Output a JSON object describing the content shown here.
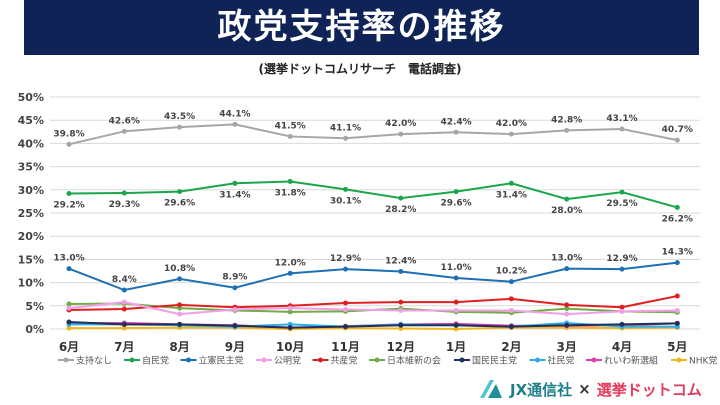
{
  "header": {
    "title": "政党支持率の推移",
    "subtitle": "(選挙ドットコムリサーチ　電話調査)"
  },
  "footer": {
    "brand1": "JX通信社",
    "times": "×",
    "brand2": "選挙ドットコム"
  },
  "chart_data": {
    "type": "line",
    "title": "政党支持率の推移",
    "subtitle": "(選挙ドットコムリサーチ　電話調査)",
    "categories": [
      "6月",
      "7月",
      "8月",
      "9月",
      "10月",
      "11月",
      "12月",
      "1月",
      "2月",
      "3月",
      "4月",
      "5月"
    ],
    "ylim": [
      0,
      50
    ],
    "yticks": [
      "0%",
      "5%",
      "10%",
      "15%",
      "20%",
      "25%",
      "30%",
      "35%",
      "40%",
      "45%",
      "50%"
    ],
    "grid": true,
    "legend": "bottom",
    "series": [
      {
        "name": "支持なし",
        "color": "#a6a6a6",
        "values": [
          39.8,
          42.6,
          43.5,
          44.1,
          41.5,
          41.1,
          42.0,
          42.4,
          42.0,
          42.8,
          43.1,
          40.7
        ],
        "labels": [
          "39.8%",
          "42.6%",
          "43.5%",
          "44.1%",
          "41.5%",
          "41.1%",
          "42.0%",
          "42.4%",
          "42.0%",
          "42.8%",
          "43.1%",
          "40.7%"
        ],
        "label_pos": "above"
      },
      {
        "name": "自民党",
        "color": "#1aa64b",
        "values": [
          29.2,
          29.3,
          29.6,
          31.4,
          31.8,
          30.1,
          28.2,
          29.6,
          31.4,
          28.0,
          29.5,
          26.2
        ],
        "labels": [
          "29.2%",
          "29.3%",
          "29.6%",
          "31.4%",
          "31.8%",
          "30.1%",
          "28.2%",
          "29.6%",
          "31.4%",
          "28.0%",
          "29.5%",
          "26.2%"
        ],
        "label_pos": "below"
      },
      {
        "name": "立憲民主党",
        "color": "#1f6fb5",
        "values": [
          13.0,
          8.4,
          10.8,
          8.9,
          12.0,
          12.9,
          12.4,
          11.0,
          10.2,
          13.0,
          12.9,
          14.3
        ],
        "labels": [
          "13.0%",
          "8.4%",
          "10.8%",
          "8.9%",
          "12.0%",
          "12.9%",
          "12.4%",
          "11.0%",
          "10.2%",
          "13.0%",
          "12.9%",
          "14.3%"
        ],
        "label_pos": "above"
      },
      {
        "name": "公明党",
        "color": "#f29ee6",
        "values": [
          4.5,
          5.8,
          3.2,
          4.2,
          4.5,
          4.2,
          4.0,
          4.0,
          4.0,
          3.2,
          3.8,
          4.0
        ]
      },
      {
        "name": "共産党",
        "color": "#e01f1f",
        "values": [
          4.1,
          4.3,
          5.2,
          4.7,
          5.0,
          5.6,
          5.8,
          5.8,
          6.5,
          5.2,
          4.7,
          7.1
        ]
      },
      {
        "name": "日本維新の会",
        "color": "#70ad47",
        "values": [
          5.4,
          5.5,
          4.5,
          4.0,
          3.7,
          3.8,
          4.4,
          3.7,
          3.5,
          4.4,
          3.8,
          3.6
        ]
      },
      {
        "name": "国民民主党",
        "color": "#1f2f5a",
        "values": [
          1.5,
          1.0,
          1.0,
          0.7,
          0.3,
          0.5,
          0.8,
          0.8,
          0.5,
          0.8,
          1.0,
          1.2
        ]
      },
      {
        "name": "社民党",
        "color": "#2eaee8",
        "values": [
          1.0,
          1.0,
          0.8,
          0.5,
          1.0,
          0.5,
          1.0,
          0.8,
          0.5,
          1.3,
          0.5,
          0.5
        ]
      },
      {
        "name": "れいわ新選組",
        "color": "#e03fa8",
        "values": [
          1.2,
          1.3,
          1.0,
          0.8,
          0.3,
          0.6,
          1.0,
          1.1,
          0.7,
          0.7,
          0.8,
          1.2
        ]
      },
      {
        "name": "NHK党",
        "color": "#f2b51c",
        "values": [
          0.2,
          0.2,
          0.3,
          0.3,
          0.0,
          0.2,
          0.1,
          0.0,
          0.3,
          0.3,
          0.2,
          0.3
        ]
      }
    ]
  }
}
